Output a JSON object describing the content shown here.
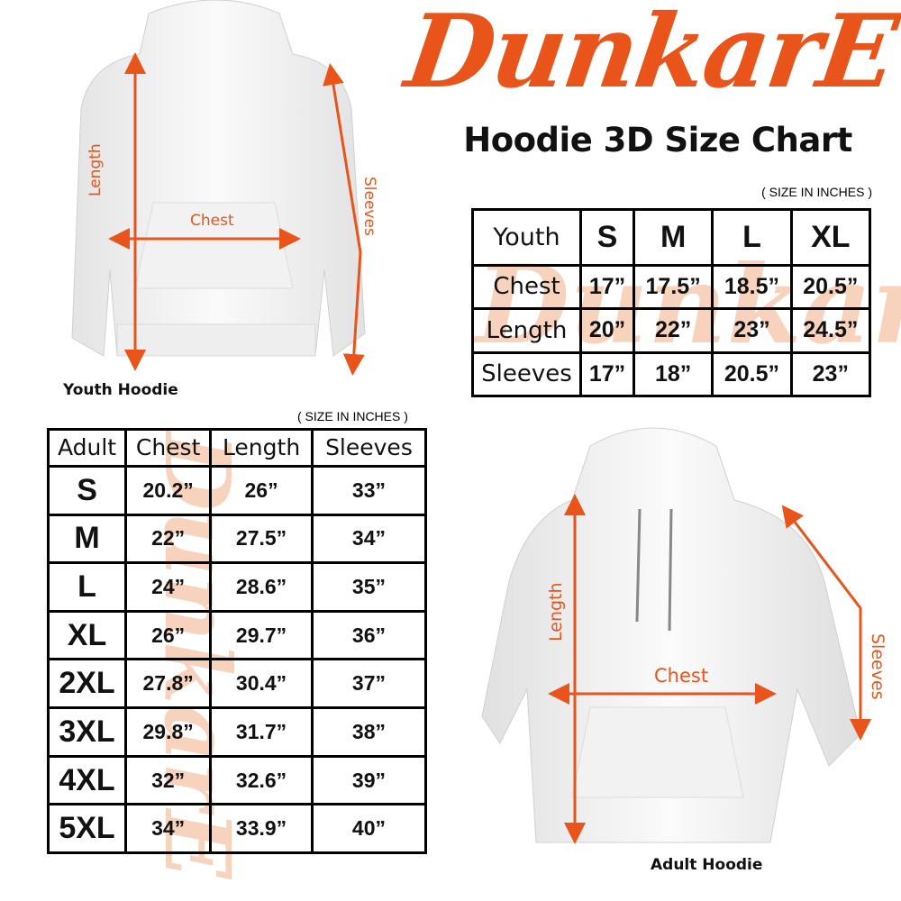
{
  "brand": {
    "logo": "DunkarE",
    "accent_color": "#e8541a"
  },
  "title": "Hoodie 3D Size Chart",
  "youth": {
    "unit_note": "( SIZE IN INCHES )",
    "caption": "Youth Hoodie",
    "labels": {
      "length": "Length",
      "chest": "Chest",
      "sleeves": "Sleeves"
    },
    "header": [
      "Youth",
      "S",
      "M",
      "L",
      "XL"
    ],
    "rows": [
      {
        "label": "Chest",
        "values": [
          "17”",
          "17.5”",
          "18.5”",
          "20.5”"
        ]
      },
      {
        "label": "Length",
        "values": [
          "20”",
          "22”",
          "23”",
          "24.5”"
        ]
      },
      {
        "label": "Sleeves",
        "values": [
          "17”",
          "18”",
          "20.5”",
          "23”"
        ]
      }
    ]
  },
  "adult": {
    "unit_note": "( SIZE IN INCHES )",
    "caption": "Adult Hoodie",
    "labels": {
      "length": "Length",
      "chest": "Chest",
      "sleeves": "Sleeves"
    },
    "header": [
      "Adult",
      "Chest",
      "Length",
      "Sleeves"
    ],
    "rows": [
      {
        "size": "S",
        "values": [
          "20.2”",
          "26”",
          "33”"
        ]
      },
      {
        "size": "M",
        "values": [
          "22”",
          "27.5”",
          "34”"
        ]
      },
      {
        "size": "L",
        "values": [
          "24”",
          "28.6”",
          "35”"
        ]
      },
      {
        "size": "XL",
        "values": [
          "26”",
          "29.7”",
          "36”"
        ]
      },
      {
        "size": "2XL",
        "values": [
          "27.8”",
          "30.4”",
          "37”"
        ]
      },
      {
        "size": "3XL",
        "values": [
          "29.8”",
          "31.7”",
          "38”"
        ]
      },
      {
        "size": "4XL",
        "values": [
          "32”",
          "32.6”",
          "39”"
        ]
      },
      {
        "size": "5XL",
        "values": [
          "34”",
          "33.9”",
          "40”"
        ]
      }
    ]
  }
}
